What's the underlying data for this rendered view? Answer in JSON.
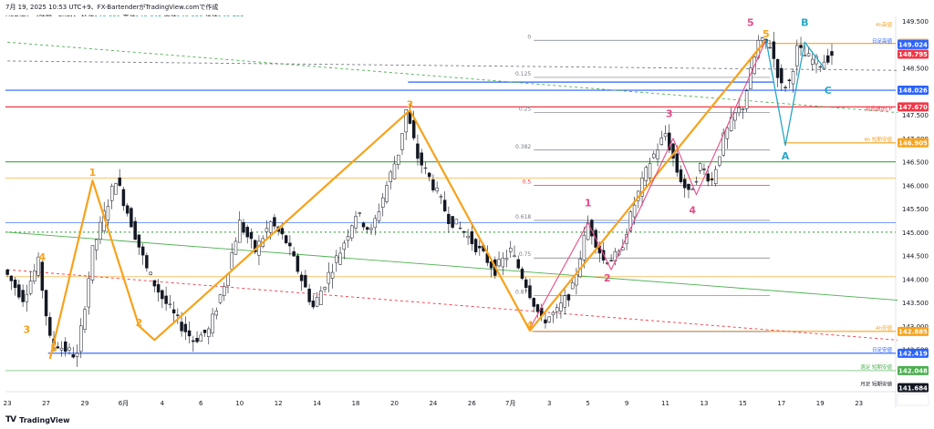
{
  "header": {
    "text": "7月 19, 2025 10:53 UTC+9、FX-BartenderがTradingView.comで作成",
    "symbol": "USDJPY・4時間・FXCM",
    "open_label": "始値",
    "open": "148.691",
    "high_label": "高値",
    "high": "148.845",
    "low_label": "安値",
    "low": "148.656",
    "close_label": "終値",
    "close": "148.795"
  },
  "brand": {
    "logo": "TV",
    "name": "TradingView"
  },
  "colors": {
    "orange": "#f7a21b",
    "blue": "#2962ff",
    "red": "#f23645",
    "green": "#4caf50",
    "pink": "#e84a8a",
    "teal": "#26a7c9",
    "fib": "#787b86",
    "candle": "#131722"
  },
  "chart_data": {
    "type": "candlestick",
    "symbol": "USDJPY",
    "timeframe": "4H",
    "y_axis": {
      "min": 141.6,
      "max": 149.6,
      "ticks": [
        "149.500",
        "149.000",
        "148.500",
        "148.000",
        "147.500",
        "147.000",
        "146.500",
        "146.000",
        "145.500",
        "145.000",
        "144.500",
        "144.000",
        "143.500",
        "143.000",
        "142.500"
      ]
    },
    "x_axis": {
      "ticks": [
        {
          "label": "23",
          "i": 0
        },
        {
          "label": "27",
          "i": 10
        },
        {
          "label": "29",
          "i": 20
        },
        {
          "label": "6月",
          "i": 30
        },
        {
          "label": "4",
          "i": 40
        },
        {
          "label": "6",
          "i": 50
        },
        {
          "label": "10",
          "i": 60
        },
        {
          "label": "12",
          "i": 70
        },
        {
          "label": "14",
          "i": 80
        },
        {
          "label": "18",
          "i": 90
        },
        {
          "label": "20",
          "i": 100
        },
        {
          "label": "24",
          "i": 110
        },
        {
          "label": "26",
          "i": 120
        },
        {
          "label": "7月",
          "i": 130
        },
        {
          "label": "3",
          "i": 140
        },
        {
          "label": "5",
          "i": 150
        },
        {
          "label": "9",
          "i": 160
        },
        {
          "label": "11",
          "i": 170
        },
        {
          "label": "13",
          "i": 180
        },
        {
          "label": "15",
          "i": 190
        },
        {
          "label": "17",
          "i": 200
        },
        {
          "label": "19",
          "i": 210
        },
        {
          "label": "23",
          "i": 220
        }
      ],
      "n_slots": 230
    },
    "pivots": [
      {
        "i": 0,
        "p": 144.2
      },
      {
        "i": 5,
        "p": 143.6
      },
      {
        "i": 9,
        "p": 144.35
      },
      {
        "i": 12,
        "p": 142.7
      },
      {
        "i": 15,
        "p": 142.55
      },
      {
        "i": 19,
        "p": 142.35
      },
      {
        "i": 23,
        "p": 144.6
      },
      {
        "i": 29,
        "p": 146.15
      },
      {
        "i": 33,
        "p": 145.2
      },
      {
        "i": 37,
        "p": 144.2
      },
      {
        "i": 41,
        "p": 143.6
      },
      {
        "i": 45,
        "p": 143.1
      },
      {
        "i": 49,
        "p": 142.7
      },
      {
        "i": 53,
        "p": 142.9
      },
      {
        "i": 57,
        "p": 143.9
      },
      {
        "i": 61,
        "p": 145.2
      },
      {
        "i": 65,
        "p": 144.6
      },
      {
        "i": 69,
        "p": 145.2
      },
      {
        "i": 73,
        "p": 144.8
      },
      {
        "i": 77,
        "p": 144.0
      },
      {
        "i": 80,
        "p": 143.4
      },
      {
        "i": 84,
        "p": 144.1
      },
      {
        "i": 87,
        "p": 144.6
      },
      {
        "i": 91,
        "p": 145.4
      },
      {
        "i": 95,
        "p": 145.0
      },
      {
        "i": 99,
        "p": 146.0
      },
      {
        "i": 102,
        "p": 146.7
      },
      {
        "i": 104,
        "p": 147.6
      },
      {
        "i": 107,
        "p": 146.6
      },
      {
        "i": 111,
        "p": 146.0
      },
      {
        "i": 115,
        "p": 145.3
      },
      {
        "i": 119,
        "p": 145.0
      },
      {
        "i": 123,
        "p": 144.6
      },
      {
        "i": 127,
        "p": 144.2
      },
      {
        "i": 131,
        "p": 144.6
      },
      {
        "i": 135,
        "p": 143.9
      },
      {
        "i": 139,
        "p": 143.1
      },
      {
        "i": 143,
        "p": 143.3
      },
      {
        "i": 147,
        "p": 143.8
      },
      {
        "i": 151,
        "p": 145.2
      },
      {
        "i": 155,
        "p": 144.4
      },
      {
        "i": 159,
        "p": 144.5
      },
      {
        "i": 163,
        "p": 145.6
      },
      {
        "i": 167,
        "p": 146.5
      },
      {
        "i": 171,
        "p": 147.1
      },
      {
        "i": 174,
        "p": 146.3
      },
      {
        "i": 177,
        "p": 145.8
      },
      {
        "i": 180,
        "p": 146.4
      },
      {
        "i": 183,
        "p": 146.1
      },
      {
        "i": 186,
        "p": 147.0
      },
      {
        "i": 189,
        "p": 147.5
      },
      {
        "i": 191,
        "p": 147.7
      },
      {
        "i": 193,
        "p": 148.4
      },
      {
        "i": 195,
        "p": 149.05
      },
      {
        "i": 198,
        "p": 149.0
      },
      {
        "i": 201,
        "p": 148.1
      },
      {
        "i": 203,
        "p": 148.2
      },
      {
        "i": 205,
        "p": 148.9
      },
      {
        "i": 208,
        "p": 148.7
      },
      {
        "i": 211,
        "p": 148.6
      },
      {
        "i": 214,
        "p": 148.8
      }
    ],
    "fib": {
      "x_start": 136,
      "x_end": 197,
      "levels": [
        {
          "label": "0",
          "p": 149.09
        },
        {
          "label": "0.125",
          "p": 148.3
        },
        {
          "label": "0.25",
          "p": 147.55
        },
        {
          "label": "0.382",
          "p": 146.75
        },
        {
          "label": "0.5",
          "p": 146.0
        },
        {
          "label": "0.618",
          "p": 145.25
        },
        {
          "label": "0.75",
          "p": 144.45
        },
        {
          "label": "0.875",
          "p": 143.65
        },
        {
          "label": "1",
          "p": 142.88
        }
      ]
    },
    "levels": [
      {
        "label": "4h高値",
        "price": "149.024",
        "p": 149.35,
        "color": "#f7a21b",
        "tag": false
      },
      {
        "label": "",
        "price": "149.024",
        "p": 149.024,
        "color": "#f7a21b",
        "tag": true
      },
      {
        "label": "日足高値",
        "price": "149.024",
        "p": 149.0,
        "color": "#2962ff",
        "tag": true
      },
      {
        "label": "",
        "price": "148.795",
        "p": 148.795,
        "color": "#f23645",
        "tag": true
      },
      {
        "label": "",
        "price": "148.026",
        "p": 148.026,
        "color": "#2962ff",
        "tag": true
      },
      {
        "label": "",
        "price": "147.670",
        "p": 147.67,
        "color": "#f23645",
        "tag": true
      },
      {
        "label": "前長期足CP",
        "price": "",
        "p": 147.55,
        "color": "#f23645",
        "tag": false
      },
      {
        "label": "4h 短期安値",
        "price": "146.905",
        "p": 146.905,
        "color": "#f7a21b",
        "tag": true
      },
      {
        "label": "4h安値",
        "price": "142.885",
        "p": 142.885,
        "color": "#f7a21b",
        "tag": true
      },
      {
        "label": "日足安値",
        "price": "142.419",
        "p": 142.419,
        "color": "#2962ff",
        "tag": true
      },
      {
        "label": "週足 短期安値",
        "price": "142.048",
        "p": 142.048,
        "color": "#4caf50",
        "tag": true
      },
      {
        "label": "月足 短期安値",
        "price": "141.684",
        "p": 141.684,
        "color": "#131722",
        "tag": true
      }
    ],
    "wave_orange": [
      {
        "i": 11,
        "p": 142.3
      },
      {
        "i": 22,
        "p": 146.1
      },
      {
        "i": 34,
        "p": 143.0
      },
      {
        "i": 38,
        "p": 142.7
      },
      {
        "i": 104,
        "p": 147.6
      },
      {
        "i": 135,
        "p": 142.9
      },
      {
        "i": 196,
        "p": 149.1
      }
    ],
    "wave_pink": [
      {
        "i": 135,
        "p": 142.95
      },
      {
        "i": 150,
        "p": 145.2
      },
      {
        "i": 156,
        "p": 144.2
      },
      {
        "i": 172,
        "p": 147.0
      },
      {
        "i": 178,
        "p": 145.8
      },
      {
        "i": 196,
        "p": 149.1
      }
    ],
    "wave_teal": [
      {
        "i": 196,
        "p": 149.1
      },
      {
        "i": 201,
        "p": 146.85
      },
      {
        "i": 206,
        "p": 149.05
      },
      {
        "i": 211,
        "p": 148.5
      }
    ],
    "labels": [
      {
        "text": "1",
        "i": 22,
        "p": 146.2,
        "color": "#f7a21b"
      },
      {
        "text": "2",
        "i": 34,
        "p": 143.0,
        "color": "#f7a21b"
      },
      {
        "text": "3",
        "i": 104,
        "p": 147.65,
        "color": "#f7a21b"
      },
      {
        "text": "4",
        "i": 135,
        "p": 142.95,
        "color": "#f7a21b"
      },
      {
        "text": "5",
        "i": 196,
        "p": 149.15,
        "color": "#f7a21b"
      },
      {
        "text": "4",
        "i": 9,
        "p": 144.4,
        "color": "#f7a21b"
      },
      {
        "text": "3",
        "i": 5,
        "p": 142.85,
        "color": "#f7a21b"
      },
      {
        "text": "5",
        "i": 12,
        "p": 142.45,
        "color": "#f7a21b"
      },
      {
        "text": "1",
        "i": 150,
        "p": 145.55,
        "color": "#e84a8a"
      },
      {
        "text": "2",
        "i": 155,
        "p": 143.95,
        "color": "#e84a8a"
      },
      {
        "text": "3",
        "i": 171,
        "p": 147.45,
        "color": "#e84a8a"
      },
      {
        "text": "4",
        "i": 177,
        "p": 145.4,
        "color": "#e84a8a"
      },
      {
        "text": "5",
        "i": 192,
        "p": 149.4,
        "color": "#e84a8a"
      },
      {
        "text": "B",
        "i": 206,
        "p": 149.4,
        "color": "#26a7c9"
      },
      {
        "text": "C",
        "i": 212,
        "p": 147.95,
        "color": "#26a7c9"
      },
      {
        "text": "A",
        "i": 201,
        "p": 146.55,
        "color": "#26a7c9"
      }
    ],
    "trendlines": [
      {
        "from": {
          "i": 0,
          "p": 145.0
        },
        "to": {
          "i": 230,
          "p": 143.55
        },
        "color": "#4caf50",
        "style": "solid"
      },
      {
        "from": {
          "i": 0,
          "p": 144.2
        },
        "to": {
          "i": 230,
          "p": 142.7
        },
        "color": "#f23645",
        "style": "dashed"
      },
      {
        "from": {
          "i": 0,
          "p": 149.05
        },
        "to": {
          "i": 230,
          "p": 147.55
        },
        "color": "#4caf50",
        "style": "dashed"
      },
      {
        "from": {
          "i": 0,
          "p": 148.65
        },
        "to": {
          "i": 230,
          "p": 148.45
        },
        "color": "#787b86",
        "style": "dashed"
      }
    ],
    "horizontal_lines": [
      {
        "p": 148.026,
        "color": "#2962ff",
        "i_from": 0
      },
      {
        "p": 147.67,
        "color": "#f23645",
        "i_from": 0
      },
      {
        "p": 146.5,
        "color": "#4caf50",
        "i_from": 0
      },
      {
        "p": 146.15,
        "color": "#f7a21b",
        "i_from": 0,
        "thin": true
      },
      {
        "p": 145.2,
        "color": "#2962ff",
        "i_from": 0,
        "thin": true
      },
      {
        "p": 145.0,
        "color": "#4caf50",
        "i_from": 0,
        "dashed": true
      },
      {
        "p": 144.05,
        "color": "#f7a21b",
        "i_from": 0,
        "thin": true
      },
      {
        "p": 142.419,
        "color": "#2962ff",
        "i_from": 11
      },
      {
        "p": 142.048,
        "color": "#4caf50",
        "i_from": 0,
        "thin": true
      },
      {
        "p": 142.885,
        "color": "#f7a21b",
        "i_from": 136
      },
      {
        "p": 146.905,
        "color": "#f7a21b",
        "i_from": 201
      },
      {
        "p": 149.024,
        "color": "#f7a21b",
        "i_from": 196
      },
      {
        "p": 148.2,
        "color": "#2962ff",
        "i_from": 104,
        "i_to": 198
      }
    ]
  }
}
